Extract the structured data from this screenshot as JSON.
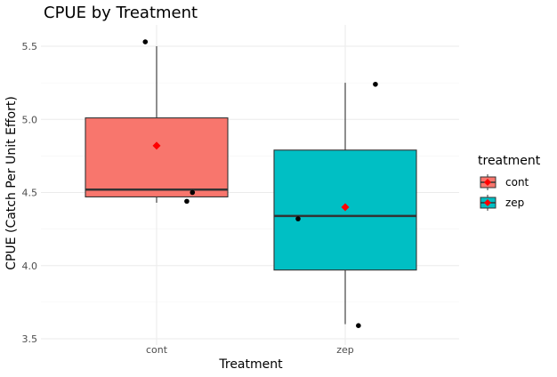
{
  "chart_data": {
    "type": "box",
    "title": "CPUE by Treatment",
    "xlabel": "Treatment",
    "ylabel": "CPUE (Catch Per Unit Effort)",
    "categories": [
      "cont",
      "zep"
    ],
    "ylim": [
      3.45,
      5.6
    ],
    "yticks": [
      "3.5",
      "4.0",
      "4.5",
      "5.0",
      "5.5"
    ],
    "grid": true,
    "legend_title": "treatment",
    "legend_position": "right",
    "boxes": [
      {
        "name": "cont",
        "color": "#F8766D",
        "whisker_low": 4.43,
        "q1": 4.47,
        "median": 4.52,
        "q3": 5.01,
        "whisker_high": 5.5,
        "mean": 4.82
      },
      {
        "name": "zep",
        "color": "#00BFC4",
        "whisker_low": 3.6,
        "q1": 3.97,
        "median": 4.34,
        "q3": 4.79,
        "whisker_high": 5.25,
        "mean": 4.4
      }
    ],
    "points": [
      {
        "category": "cont",
        "offset": -0.06,
        "value": 5.53
      },
      {
        "category": "cont",
        "offset": 0.19,
        "value": 4.5
      },
      {
        "category": "cont",
        "offset": 0.16,
        "value": 4.44
      },
      {
        "category": "zep",
        "offset": -0.25,
        "value": 4.32
      },
      {
        "category": "zep",
        "offset": 0.16,
        "value": 5.24
      },
      {
        "category": "zep",
        "offset": 0.07,
        "value": 3.59
      }
    ],
    "mean_marker_color": "#FF0000"
  }
}
